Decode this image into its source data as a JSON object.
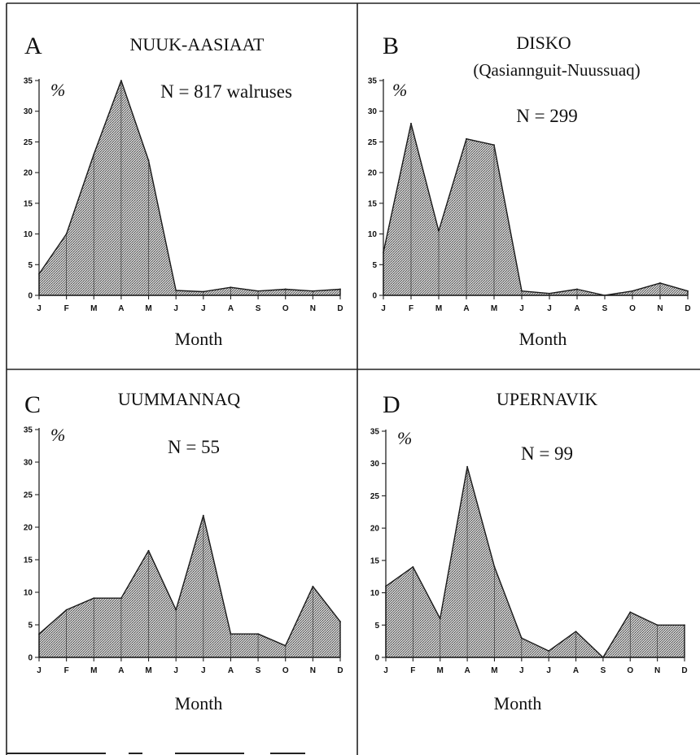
{
  "chart_data": [
    {
      "type": "area",
      "panel": "A",
      "title": "NUUK-AASIAAT",
      "subtitle": "",
      "n_label": "N = 817 walruses",
      "unit": "%",
      "xlabel": "Month",
      "categories": [
        "J",
        "F",
        "M",
        "A",
        "M",
        "J",
        "J",
        "A",
        "S",
        "O",
        "N",
        "D"
      ],
      "values": [
        3.5,
        10,
        23,
        35,
        22,
        0.8,
        0.6,
        1.3,
        0.7,
        1.0,
        0.7,
        1.0
      ],
      "ylim": [
        0,
        35
      ],
      "yticks": [
        0,
        5,
        10,
        15,
        20,
        25,
        30,
        35
      ],
      "grid": false
    },
    {
      "type": "area",
      "panel": "B",
      "title": "DISKO",
      "subtitle": "(Qasiannguit-Nuussuaq)",
      "n_label": "N = 299",
      "unit": "%",
      "xlabel": "Month",
      "categories": [
        "J",
        "F",
        "M",
        "A",
        "M",
        "J",
        "J",
        "A",
        "S",
        "O",
        "N",
        "D"
      ],
      "values": [
        7,
        28,
        10.5,
        25.5,
        24.5,
        0.7,
        0.3,
        1.0,
        0,
        0.7,
        2.0,
        0.7
      ],
      "ylim": [
        0,
        35
      ],
      "yticks": [
        0,
        5,
        10,
        15,
        20,
        25,
        30,
        35
      ],
      "grid": false
    },
    {
      "type": "area",
      "panel": "C",
      "title": "UUMMANNAQ",
      "subtitle": "",
      "n_label": "N = 55",
      "unit": "%",
      "xlabel": "Month",
      "categories": [
        "J",
        "F",
        "M",
        "A",
        "M",
        "J",
        "J",
        "A",
        "S",
        "O",
        "N",
        "D"
      ],
      "values": [
        3.6,
        7.3,
        9.1,
        9.1,
        16.4,
        7.3,
        21.8,
        3.6,
        3.6,
        1.8,
        10.9,
        5.5
      ],
      "ylim": [
        0,
        35
      ],
      "yticks": [
        0,
        5,
        10,
        15,
        20,
        25,
        30,
        35
      ],
      "grid": false
    },
    {
      "type": "area",
      "panel": "D",
      "title": "UPERNAVIK",
      "subtitle": "",
      "n_label": "N = 99",
      "unit": "%",
      "xlabel": "Month",
      "categories": [
        "J",
        "F",
        "M",
        "A",
        "M",
        "J",
        "J",
        "A",
        "S",
        "O",
        "N",
        "D"
      ],
      "values": [
        11,
        14,
        6,
        29.5,
        14,
        3,
        1,
        4,
        0,
        7,
        5,
        5
      ],
      "ylim": [
        0,
        35
      ],
      "yticks": [
        0,
        5,
        10,
        15,
        20,
        25,
        30,
        35
      ],
      "grid": false
    }
  ]
}
